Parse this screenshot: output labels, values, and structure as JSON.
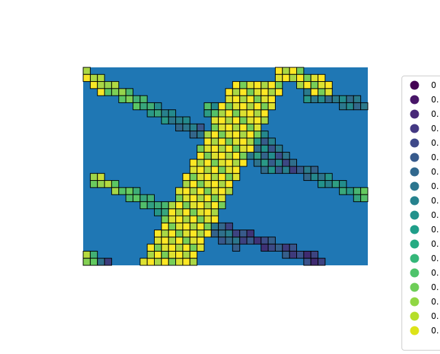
{
  "chart_data": {
    "type": "heatmap",
    "title": "",
    "xlabel": "",
    "ylabel": "",
    "axes_visible": false,
    "grid_cols": 40,
    "grid_rows": 28,
    "background_color": "#1f77b4",
    "cell_edge_color": "#000000",
    "colormap": "viridis",
    "value_range": [
      0,
      1
    ],
    "legend": {
      "placement": "right",
      "entries": [
        "0",
        "0.",
        "0.",
        "0.",
        "0.",
        "0.",
        "0.",
        "0.",
        "0.",
        "0.",
        "0.",
        "0.",
        "0.",
        "0.",
        "0.",
        "0.",
        "0.",
        "0."
      ]
    },
    "legend_colors": [
      "#440154",
      "#481668",
      "#482878",
      "#443983",
      "#3e4989",
      "#375a8c",
      "#31688e",
      "#2b758e",
      "#26828e",
      "#21918c",
      "#1f9e89",
      "#25ab82",
      "#35b779",
      "#4ec36b",
      "#6ece58",
      "#90d743",
      "#b5de2b",
      "#dde318"
    ],
    "bands": [
      {
        "name": "upper-left-diagonal",
        "from": [
          1,
          1
        ],
        "to": [
          17,
          9
        ],
        "width": 1,
        "start_value": 0.9,
        "end_value": 0.25
      },
      {
        "name": "lower-left-diagonal",
        "from": [
          1,
          15
        ],
        "to": [
          21,
          24
        ],
        "width": 1,
        "start_value": 0.85,
        "end_value": 0.3
      },
      {
        "name": "lower-right-diagonal",
        "from": [
          19,
          22
        ],
        "to": [
          33,
          27
        ],
        "width": 1,
        "start_value": 0.25,
        "end_value": 0.2
      },
      {
        "name": "right-middle-diagonal",
        "from": [
          26,
          12
        ],
        "to": [
          40,
          18
        ],
        "width": 1,
        "start_value": 0.1,
        "end_value": 0.75
      },
      {
        "name": "upper-right-diagonal",
        "from": [
          31,
          3
        ],
        "to": [
          40,
          5
        ],
        "width": 1,
        "start_value": 0.45,
        "end_value": 0.35
      },
      {
        "name": "central-rise",
        "from": [
          11,
          27
        ],
        "to": [
          24,
          2
        ],
        "width": 4,
        "start_value": 0.95,
        "end_value": 0.95
      },
      {
        "name": "central-fall",
        "from": [
          19,
          5
        ],
        "to": [
          27,
          13
        ],
        "width": 3,
        "start_value": 0.55,
        "end_value": 0.35
      },
      {
        "name": "top-right-block",
        "from": [
          28,
          0
        ],
        "to": [
          33,
          2
        ],
        "width": 2,
        "start_value": 0.95,
        "end_value": 0.95
      },
      {
        "name": "top-left-block",
        "from": [
          0,
          0
        ],
        "to": [
          2,
          2
        ],
        "width": 1,
        "start_value": 0.95,
        "end_value": 0.95
      },
      {
        "name": "bottom-left-block",
        "from": [
          0,
          26
        ],
        "to": [
          3,
          27
        ],
        "width": 1,
        "start_value": 0.85,
        "end_value": 0.05
      }
    ]
  }
}
